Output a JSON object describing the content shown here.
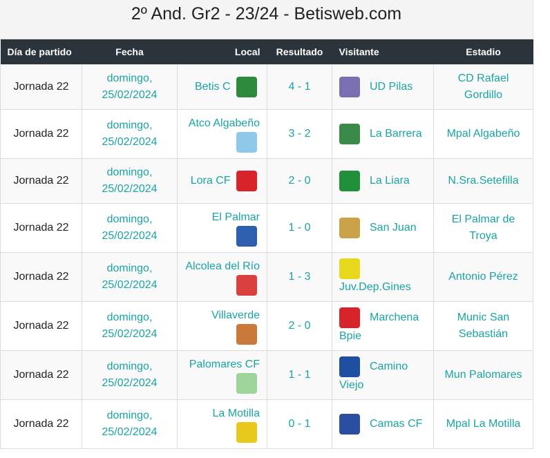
{
  "title": "2º And. Gr2 - 23/24 - Betisweb.com",
  "headers": [
    "Día de partido",
    "Fecha",
    "Local",
    "Resultado",
    "Visitante",
    "Estadio"
  ],
  "rows": [
    {
      "jornada": "Jornada 22",
      "fecha": "domingo, 25/02/2024",
      "local": "Betis C",
      "local_logo": "#2e8b3e",
      "resultado": "4 - 1",
      "visitante": "UD Pilas",
      "visitante_logo": "#7a6fb0",
      "estadio": "CD Rafael Gordillo"
    },
    {
      "jornada": "Jornada 22",
      "fecha": "domingo, 25/02/2024",
      "local": "Atco Algabeño",
      "local_logo": "#8ec9ea",
      "resultado": "3 - 2",
      "visitante": "La Barrera",
      "visitante_logo": "#3a8a4a",
      "estadio": "Mpal Algabeño"
    },
    {
      "jornada": "Jornada 22",
      "fecha": "domingo, 25/02/2024",
      "local": "Lora CF",
      "local_logo": "#d8232a",
      "resultado": "2 - 0",
      "visitante": "La Liara",
      "visitante_logo": "#1f8f3a",
      "estadio": "N.Sra.Setefilla"
    },
    {
      "jornada": "Jornada 22",
      "fecha": "domingo, 25/02/2024",
      "local": "El Palmar",
      "local_logo": "#2d5fae",
      "resultado": "1 - 0",
      "visitante": "San Juan",
      "visitante_logo": "#c9a24a",
      "estadio": "El Palmar de Troya"
    },
    {
      "jornada": "Jornada 22",
      "fecha": "domingo, 25/02/2024",
      "local": "Alcolea del Río",
      "local_logo": "#d94040",
      "resultado": "1 - 3",
      "visitante": "Juv.Dep.Gines",
      "visitante_logo": "#e8d81c",
      "estadio": "Antonio Pérez"
    },
    {
      "jornada": "Jornada 22",
      "fecha": "domingo, 25/02/2024",
      "local": "Villaverde",
      "local_logo": "#c97a3a",
      "resultado": "2 - 0",
      "visitante": "Marchena Bpie",
      "visitante_logo": "#d8232a",
      "estadio": "Munic San Sebastián"
    },
    {
      "jornada": "Jornada 22",
      "fecha": "domingo, 25/02/2024",
      "local": "Palomares CF",
      "local_logo": "#9fd49a",
      "resultado": "1 - 1",
      "visitante": "Camino Viejo",
      "visitante_logo": "#1f4fa0",
      "estadio": "Mun Palomares"
    },
    {
      "jornada": "Jornada 22",
      "fecha": "domingo, 25/02/2024",
      "local": "La Motilla",
      "local_logo": "#e6c91c",
      "resultado": "0 - 1",
      "visitante": "Camas CF",
      "visitante_logo": "#2a4ea0",
      "estadio": "Mpal La Motilla"
    }
  ]
}
